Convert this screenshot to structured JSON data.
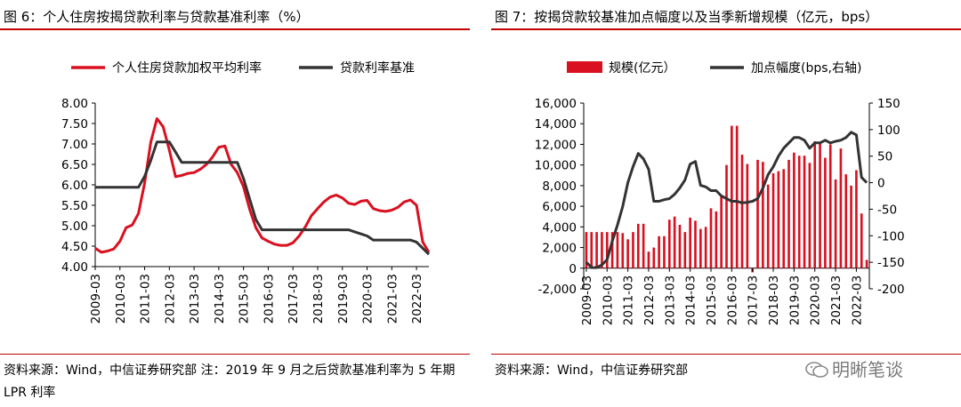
{
  "left_figure": {
    "title": "图 6：个人住房按揭贷款利率与贷款基准利率（%）",
    "source": "资料来源：Wind，中信证券研究部 注：2019 年 9 月之后贷款基准利率为 5 年期 LPR 利率"
  },
  "right_figure": {
    "title": "图 7：按揭贷款较基准加点幅度以及当季新增规模（亿元，bps）",
    "source": "资料来源：Wind，中信证券研究部"
  },
  "watermark": "明晰笔谈",
  "colors": {
    "red": "#d9101f",
    "black": "#333333",
    "rule": "#c00000"
  },
  "chart_data": [
    {
      "type": "line",
      "title": "",
      "legend": [
        "个人住房贷款加权平均利率",
        "贷款利率基准"
      ],
      "legend_position": "top",
      "x": [
        "2009-03",
        "2009-06",
        "2009-09",
        "2009-12",
        "2010-03",
        "2010-06",
        "2010-09",
        "2010-12",
        "2011-03",
        "2011-06",
        "2011-09",
        "2011-12",
        "2012-03",
        "2012-06",
        "2012-09",
        "2012-12",
        "2013-03",
        "2013-06",
        "2013-09",
        "2013-12",
        "2014-03",
        "2014-06",
        "2014-09",
        "2014-12",
        "2015-03",
        "2015-06",
        "2015-09",
        "2015-12",
        "2016-03",
        "2016-06",
        "2016-09",
        "2016-12",
        "2017-03",
        "2017-06",
        "2017-09",
        "2017-12",
        "2018-03",
        "2018-06",
        "2018-09",
        "2018-12",
        "2019-03",
        "2019-06",
        "2019-09",
        "2019-12",
        "2020-03",
        "2020-06",
        "2020-09",
        "2020-12",
        "2021-03",
        "2021-06",
        "2021-09",
        "2021-12",
        "2022-03",
        "2022-06",
        "2022-09"
      ],
      "xticks": [
        "2009-03",
        "2010-03",
        "2011-03",
        "2012-03",
        "2013-03",
        "2014-03",
        "2015-03",
        "2016-03",
        "2017-03",
        "2018-03",
        "2019-03",
        "2020-03",
        "2021-03",
        "2022-03"
      ],
      "yticks": [
        "4.00",
        "4.50",
        "5.00",
        "5.50",
        "6.00",
        "6.50",
        "7.00",
        "7.50",
        "8.00"
      ],
      "ylim": [
        4.0,
        8.0
      ],
      "grid": false,
      "series": [
        {
          "name": "个人住房贷款加权平均利率",
          "color": "#d9101f",
          "values": [
            4.45,
            4.35,
            4.38,
            4.43,
            4.62,
            4.95,
            5.02,
            5.3,
            6.05,
            7.05,
            7.62,
            7.42,
            6.85,
            6.2,
            6.23,
            6.28,
            6.3,
            6.38,
            6.5,
            6.68,
            6.92,
            6.95,
            6.5,
            6.3,
            5.95,
            5.4,
            4.95,
            4.7,
            4.62,
            4.55,
            4.52,
            4.52,
            4.58,
            4.75,
            4.97,
            5.25,
            5.42,
            5.58,
            5.7,
            5.75,
            5.68,
            5.55,
            5.52,
            5.6,
            5.62,
            5.42,
            5.37,
            5.35,
            5.38,
            5.45,
            5.58,
            5.63,
            5.5,
            4.6,
            4.35
          ]
        },
        {
          "name": "贷款利率基准",
          "color": "#333333",
          "values": [
            5.94,
            5.94,
            5.94,
            5.94,
            5.94,
            5.94,
            5.94,
            5.94,
            6.21,
            6.6,
            7.05,
            7.05,
            7.05,
            6.8,
            6.55,
            6.55,
            6.55,
            6.55,
            6.55,
            6.55,
            6.55,
            6.55,
            6.55,
            6.55,
            6.15,
            5.65,
            5.15,
            4.9,
            4.9,
            4.9,
            4.9,
            4.9,
            4.9,
            4.9,
            4.9,
            4.9,
            4.9,
            4.9,
            4.9,
            4.9,
            4.9,
            4.9,
            4.85,
            4.8,
            4.75,
            4.65,
            4.65,
            4.65,
            4.65,
            4.65,
            4.65,
            4.65,
            4.6,
            4.45,
            4.3
          ]
        }
      ]
    },
    {
      "type": "bar",
      "title": "",
      "legend": [
        "规模(亿元）",
        "加点幅度(bps,右轴)"
      ],
      "legend_position": "top",
      "x": [
        "2009-03",
        "2009-06",
        "2009-09",
        "2009-12",
        "2010-03",
        "2010-06",
        "2010-09",
        "2010-12",
        "2011-03",
        "2011-06",
        "2011-09",
        "2011-12",
        "2012-03",
        "2012-06",
        "2012-09",
        "2012-12",
        "2013-03",
        "2013-06",
        "2013-09",
        "2013-12",
        "2014-03",
        "2014-06",
        "2014-09",
        "2014-12",
        "2015-03",
        "2015-06",
        "2015-09",
        "2015-12",
        "2016-03",
        "2016-06",
        "2016-09",
        "2016-12",
        "2017-03",
        "2017-06",
        "2017-09",
        "2017-12",
        "2018-03",
        "2018-06",
        "2018-09",
        "2018-12",
        "2019-03",
        "2019-06",
        "2019-09",
        "2019-12",
        "2020-03",
        "2020-06",
        "2020-09",
        "2020-12",
        "2021-03",
        "2021-06",
        "2021-09",
        "2021-12",
        "2022-03",
        "2022-06",
        "2022-09"
      ],
      "xticks": [
        "2009-03",
        "2010-03",
        "2011-03",
        "2012-03",
        "2013-03",
        "2014-03",
        "2015-03",
        "2016-03",
        "2017-03",
        "2018-03",
        "2019-03",
        "2020-03",
        "2021-03",
        "2022-03"
      ],
      "yticks_left": [
        "-2,000",
        "0",
        "2,000",
        "4,000",
        "6,000",
        "8,000",
        "10,000",
        "12,000",
        "14,000",
        "16,000"
      ],
      "ylim_left": [
        -2000,
        16000
      ],
      "yticks_right": [
        "-200",
        "-150",
        "-100",
        "-50",
        "0",
        "50",
        "100",
        "150"
      ],
      "ylim_right": [
        -200,
        150
      ],
      "grid": false,
      "series": [
        {
          "name": "规模(亿元）",
          "axis": "left",
          "color": "#d9101f",
          "values": [
            3500,
            3500,
            3500,
            3500,
            3500,
            3500,
            3500,
            3400,
            2800,
            3500,
            4300,
            4300,
            1600,
            2000,
            3100,
            3100,
            4700,
            5000,
            4200,
            3500,
            4900,
            4600,
            3800,
            4000,
            5800,
            5500,
            7000,
            10000,
            13800,
            13800,
            11000,
            10100,
            -400,
            10500,
            10300,
            8100,
            9200,
            9400,
            9600,
            10500,
            11200,
            10900,
            10900,
            10200,
            12300,
            12100,
            10700,
            12000,
            8600,
            11600,
            9100,
            8000,
            9500,
            5300,
            800
          ]
        },
        {
          "name": "加点幅度(bps,右轴)",
          "axis": "right",
          "color": "#333333",
          "values": [
            -150,
            -160,
            -160,
            -155,
            -145,
            -110,
            -80,
            -45,
            0,
            30,
            55,
            45,
            25,
            -35,
            -35,
            -32,
            -30,
            -22,
            -10,
            5,
            35,
            40,
            -5,
            -8,
            -15,
            -15,
            -25,
            -30,
            -35,
            -35,
            -38,
            -37,
            -35,
            -30,
            -10,
            15,
            30,
            50,
            65,
            75,
            85,
            85,
            80,
            65,
            75,
            75,
            80,
            75,
            78,
            80,
            85,
            95,
            90,
            10,
            0
          ]
        }
      ]
    }
  ]
}
